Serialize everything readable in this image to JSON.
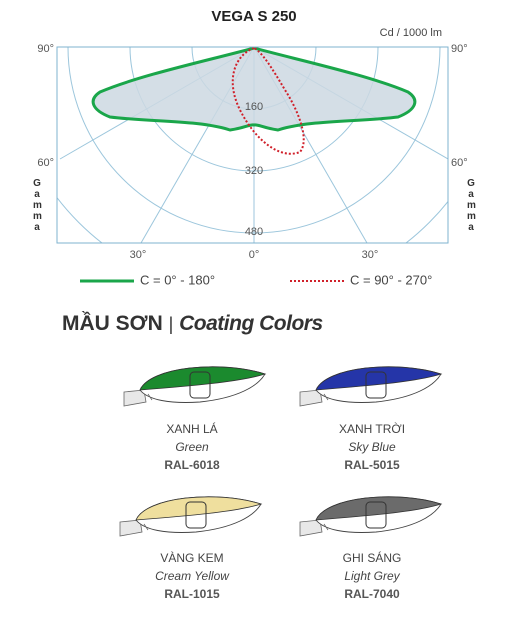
{
  "diagram": {
    "title": "VEGA S 250",
    "unit": "Cd / 1000 lm",
    "left_labels": [
      "90°",
      "60°"
    ],
    "right_labels": [
      "90°",
      "60°"
    ],
    "axis_title": "Gamma",
    "bottom_labels": [
      "30°",
      "0°",
      "30°"
    ],
    "ring_labels": [
      "160",
      "320",
      "480"
    ],
    "legend": [
      "C = 0° - 180°",
      "C = 90° - 270°"
    ]
  },
  "section_title": {
    "vi": "MẦU SƠN",
    "separator": "|",
    "en": "Coating Colors"
  },
  "colors": [
    {
      "name": "XANH LÁ",
      "english": "Green",
      "code": "RAL-6018"
    },
    {
      "name": "XANH TRỜI",
      "english": "Sky Blue",
      "code": "RAL-5015"
    },
    {
      "name": "VÀNG KEM",
      "english": "Cream Yellow",
      "code": "RAL-1015"
    },
    {
      "name": "GHI SÁNG",
      "english": "Light Grey",
      "code": "RAL-7040"
    }
  ]
}
